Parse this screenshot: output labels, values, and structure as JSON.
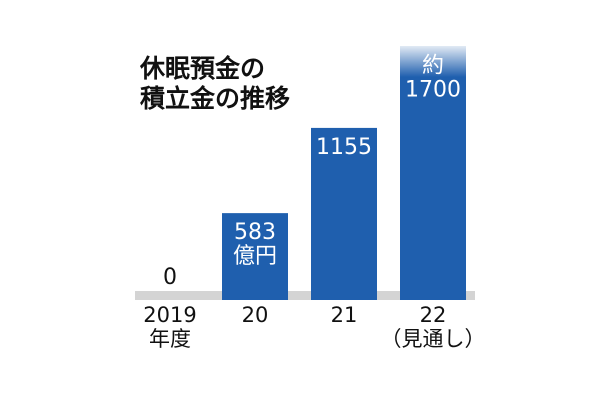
{
  "chart_data": {
    "type": "bar",
    "title": "休眠預金の\n積立金の推移",
    "categories": [
      "2019\n年度",
      "20",
      "21",
      "22\n（見通し）"
    ],
    "values": [
      0,
      583,
      1155,
      1700
    ],
    "value_labels": [
      "0",
      "583\n億円",
      "1155",
      "約\n1700"
    ],
    "color": "#1f5fae"
  }
}
